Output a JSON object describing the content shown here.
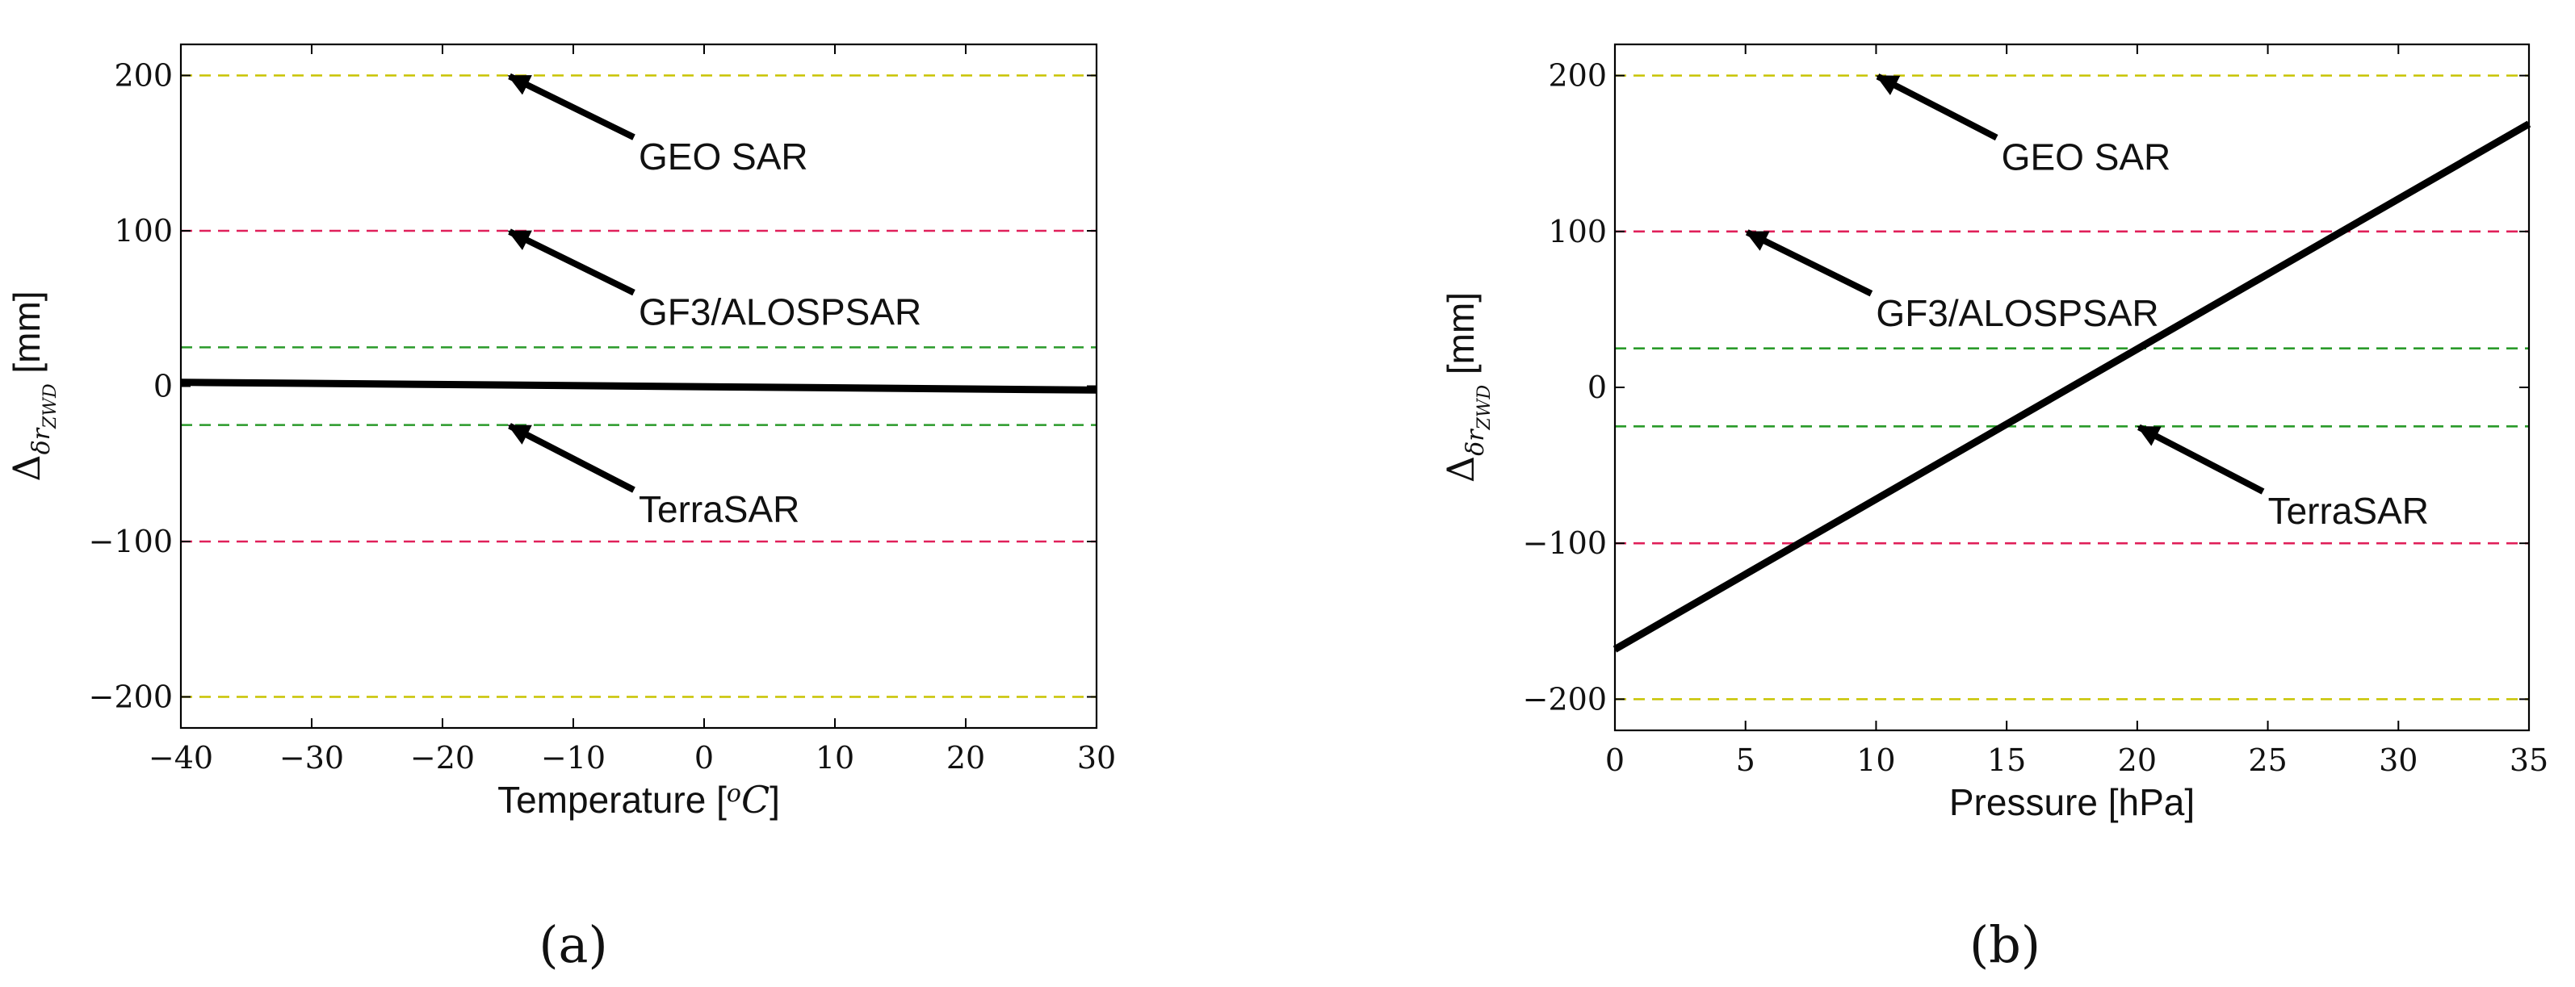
{
  "chart_data": [
    {
      "type": "line",
      "panel_label": "(a)",
      "xlabel": "Temperature [",
      "xlabel_unit": "oC",
      "xlabel_close": "]",
      "ylabel": "Δ",
      "ylabel_sub": "δr",
      "ylabel_subsub": "ZWD",
      "ylabel_unit": " [mm]",
      "xlim": [
        -40,
        30
      ],
      "ylim": [
        -220,
        220
      ],
      "xticks": [
        -40,
        -30,
        -20,
        -10,
        0,
        10,
        20,
        30
      ],
      "xtick_labels": [
        "−40",
        "−30",
        "−20",
        "−10",
        "0",
        "10",
        "20",
        "30"
      ],
      "yticks": [
        200,
        100,
        0,
        -100,
        -200
      ],
      "ytick_labels": [
        "200",
        "100",
        "0",
        "−100",
        "−200"
      ],
      "grid": false,
      "series": [
        {
          "color": "#000000",
          "x": [
            -40,
            30
          ],
          "y": [
            2.5,
            -2.5
          ]
        }
      ],
      "thresholds": [
        {
          "y": 200,
          "color": "#c8c400"
        },
        {
          "y": -200,
          "color": "#c8c400"
        },
        {
          "y": 100,
          "color": "#e0205a"
        },
        {
          "y": -100,
          "color": "#e0205a"
        },
        {
          "y": 25,
          "color": "#2a9a2a"
        },
        {
          "y": -25,
          "color": "#2a9a2a"
        }
      ],
      "annotations": [
        {
          "text": "GEO SAR",
          "xy": [
            -15,
            200
          ],
          "xytext": [
            -5,
            155
          ]
        },
        {
          "text": "GF3/ALOSPSAR",
          "xy": [
            -15,
            100
          ],
          "xytext": [
            -5,
            55
          ]
        },
        {
          "text": "TerraSAR",
          "xy": [
            -15,
            -25
          ],
          "xytext": [
            -5,
            -72
          ]
        }
      ]
    },
    {
      "type": "line",
      "panel_label": "(b)",
      "xlabel": "Pressure [hPa]",
      "ylabel": "Δ",
      "ylabel_sub": "δr",
      "ylabel_subsub": "ZWD",
      "ylabel_unit": " [mm]",
      "xlim": [
        0,
        35
      ],
      "ylim": [
        -220,
        220
      ],
      "xticks": [
        0,
        5,
        10,
        15,
        20,
        25,
        30,
        35
      ],
      "xtick_labels": [
        "0",
        "5",
        "10",
        "15",
        "20",
        "25",
        "30",
        "35"
      ],
      "yticks": [
        200,
        100,
        0,
        -100,
        -200
      ],
      "ytick_labels": [
        "200",
        "100",
        "0",
        "−100",
        "−200"
      ],
      "grid": false,
      "series": [
        {
          "color": "#000000",
          "x": [
            0,
            35
          ],
          "y": [
            -168,
            169
          ]
        }
      ],
      "thresholds": [
        {
          "y": 200,
          "color": "#c8c400"
        },
        {
          "y": -200,
          "color": "#c8c400"
        },
        {
          "y": 100,
          "color": "#e0205a"
        },
        {
          "y": -100,
          "color": "#e0205a"
        },
        {
          "y": 25,
          "color": "#2a9a2a"
        },
        {
          "y": -25,
          "color": "#2a9a2a"
        }
      ],
      "annotations": [
        {
          "text": "GEO SAR",
          "xy": [
            10,
            200
          ],
          "xytext": [
            14.8,
            155
          ]
        },
        {
          "text": "GF3/ALOSPSAR",
          "xy": [
            5,
            100
          ],
          "xytext": [
            10,
            55
          ]
        },
        {
          "text": "TerraSAR",
          "xy": [
            20,
            -25
          ],
          "xytext": [
            25,
            -72
          ]
        }
      ]
    }
  ]
}
